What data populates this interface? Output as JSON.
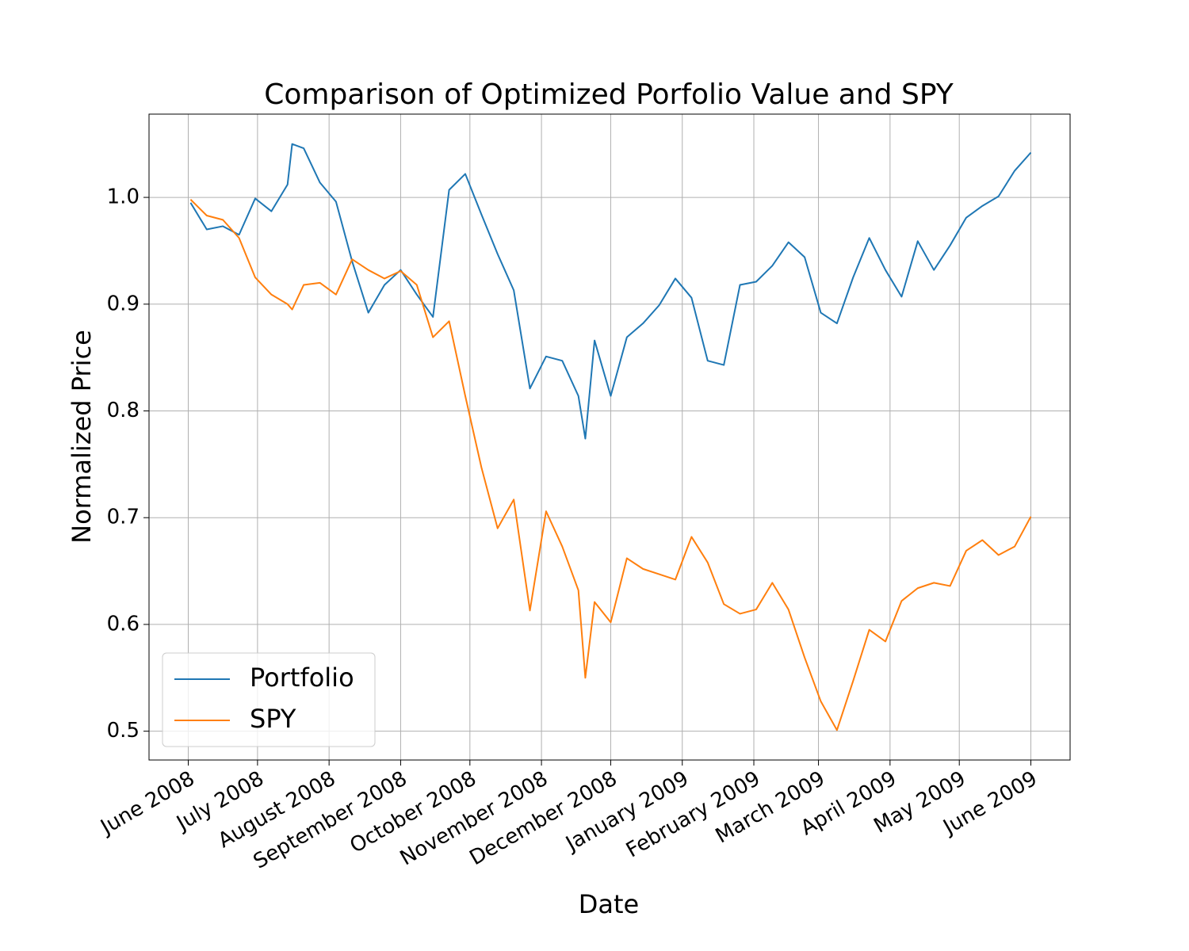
{
  "chart_data": {
    "type": "line",
    "title": "Comparison of Optimized Porfolio Value and SPY",
    "xlabel": "Date",
    "ylabel": "Normalized Price",
    "x": [
      "2008-06-02",
      "2008-06-09",
      "2008-06-16",
      "2008-06-23",
      "2008-06-30",
      "2008-07-07",
      "2008-07-14",
      "2008-07-16",
      "2008-07-21",
      "2008-07-28",
      "2008-08-04",
      "2008-08-11",
      "2008-08-18",
      "2008-08-25",
      "2008-09-01",
      "2008-09-08",
      "2008-09-15",
      "2008-09-22",
      "2008-09-29",
      "2008-10-06",
      "2008-10-13",
      "2008-10-20",
      "2008-10-27",
      "2008-11-03",
      "2008-11-10",
      "2008-11-17",
      "2008-11-20",
      "2008-11-24",
      "2008-12-01",
      "2008-12-08",
      "2008-12-15",
      "2008-12-22",
      "2008-12-29",
      "2009-01-05",
      "2009-01-12",
      "2009-01-19",
      "2009-01-26",
      "2009-02-02",
      "2009-02-09",
      "2009-02-16",
      "2009-02-23",
      "2009-03-02",
      "2009-03-09",
      "2009-03-16",
      "2009-03-23",
      "2009-03-30",
      "2009-04-06",
      "2009-04-13",
      "2009-04-20",
      "2009-04-27",
      "2009-05-04",
      "2009-05-11",
      "2009-05-18",
      "2009-05-25",
      "2009-06-01"
    ],
    "series": [
      {
        "name": "Portfolio",
        "color": "#1f77b4",
        "values": [
          0.995,
          0.97,
          0.973,
          0.965,
          0.999,
          0.987,
          1.012,
          1.05,
          1.046,
          1.014,
          0.996,
          0.94,
          0.892,
          0.918,
          0.932,
          0.909,
          0.888,
          1.007,
          1.022,
          0.984,
          0.947,
          0.913,
          0.821,
          0.851,
          0.847,
          0.814,
          0.774,
          0.866,
          0.814,
          0.869,
          0.882,
          0.899,
          0.924,
          0.906,
          0.847,
          0.843,
          0.918,
          0.921,
          0.936,
          0.958,
          0.944,
          0.892,
          0.882,
          0.925,
          0.962,
          0.932,
          0.907,
          0.959,
          0.932,
          0.955,
          0.981,
          0.992,
          1.001,
          1.025,
          1.042
        ]
      },
      {
        "name": "SPY",
        "color": "#ff7f0e",
        "values": [
          0.998,
          0.983,
          0.979,
          0.962,
          0.925,
          0.909,
          0.9,
          0.895,
          0.918,
          0.92,
          0.909,
          0.942,
          0.932,
          0.924,
          0.931,
          0.918,
          0.869,
          0.884,
          0.814,
          0.747,
          0.69,
          0.717,
          0.613,
          0.706,
          0.673,
          0.632,
          0.55,
          0.621,
          0.602,
          0.662,
          0.652,
          0.647,
          0.642,
          0.682,
          0.658,
          0.619,
          0.61,
          0.614,
          0.639,
          0.614,
          0.569,
          0.528,
          0.501,
          0.547,
          0.595,
          0.584,
          0.622,
          0.634,
          0.639,
          0.636,
          0.669,
          0.679,
          0.665,
          0.673,
          0.701
        ]
      }
    ],
    "xlim": [
      "2008-05-15",
      "2009-06-18"
    ],
    "xticks": [
      {
        "value": "2008-06-01",
        "label": "June 2008"
      },
      {
        "value": "2008-07-01",
        "label": "July 2008"
      },
      {
        "value": "2008-08-01",
        "label": "August 2008"
      },
      {
        "value": "2008-09-01",
        "label": "September 2008"
      },
      {
        "value": "2008-10-01",
        "label": "October 2008"
      },
      {
        "value": "2008-11-01",
        "label": "November 2008"
      },
      {
        "value": "2008-12-01",
        "label": "December 2008"
      },
      {
        "value": "2009-01-01",
        "label": "January 2009"
      },
      {
        "value": "2009-02-01",
        "label": "February 2009"
      },
      {
        "value": "2009-03-01",
        "label": "March 2009"
      },
      {
        "value": "2009-04-01",
        "label": "April 2009"
      },
      {
        "value": "2009-05-01",
        "label": "May 2009"
      },
      {
        "value": "2009-06-01",
        "label": "June 2009"
      }
    ],
    "ylim": [
      0.473,
      1.078
    ],
    "yticks": [
      {
        "value": 0.5,
        "label": "0.5"
      },
      {
        "value": 0.6,
        "label": "0.6"
      },
      {
        "value": 0.7,
        "label": "0.7"
      },
      {
        "value": 0.8,
        "label": "0.8"
      },
      {
        "value": 0.9,
        "label": "0.9"
      },
      {
        "value": 1.0,
        "label": "1.0"
      }
    ],
    "grid": true,
    "legend": "lower left"
  }
}
